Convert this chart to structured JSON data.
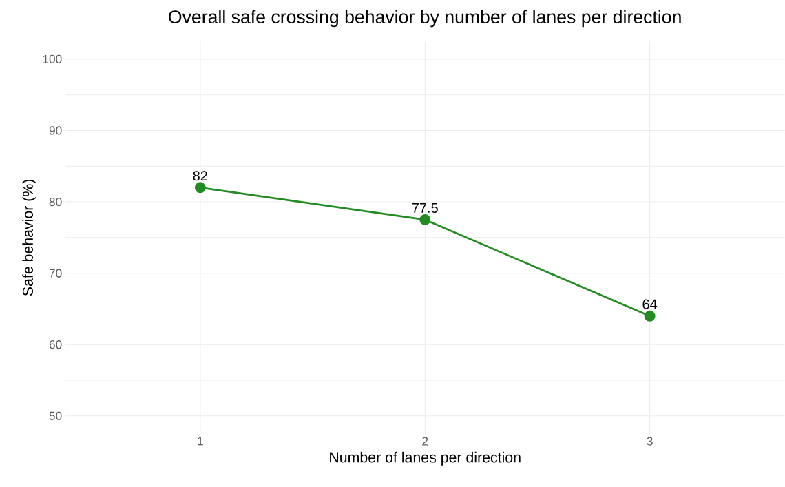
{
  "chart_data": {
    "type": "line",
    "title": "Overall safe crossing behavior by number of lanes per direction",
    "xlabel": "Number of lanes per direction",
    "ylabel": "Safe behavior (%)",
    "categories": [
      "1",
      "2",
      "3"
    ],
    "values": [
      82,
      77.5,
      64
    ],
    "color": "#228b22",
    "marker": "circle",
    "data_labels": true,
    "grid": true,
    "ylim": [
      47.5,
      102.5
    ],
    "yticks": [
      50,
      {
        "value": 55,
        "label": null
      },
      60,
      {
        "value": 65,
        "label": null
      },
      70,
      {
        "value": 75,
        "label": null
      },
      80,
      {
        "value": 85,
        "label": null
      },
      90,
      {
        "value": 95,
        "label": null
      },
      100
    ]
  }
}
